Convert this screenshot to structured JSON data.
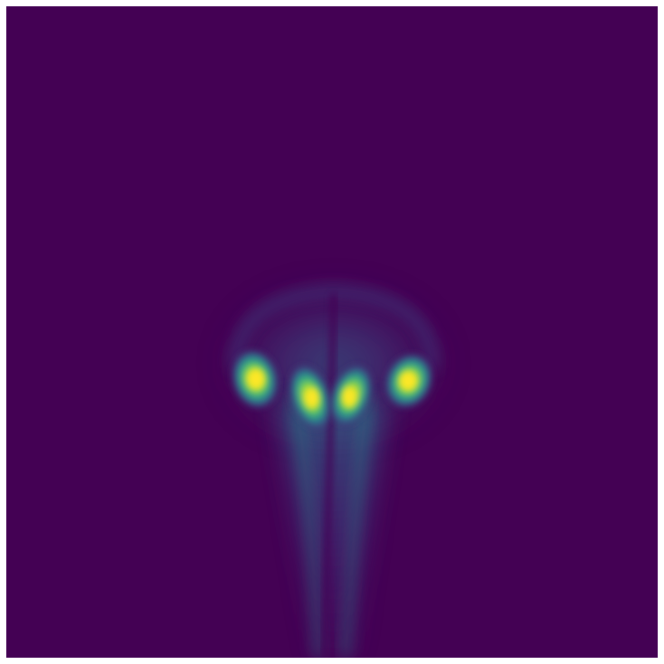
{
  "image": {
    "subject": "intensity-beam-profile",
    "colormap": "viridis",
    "colors": {
      "frame": "#ffffff",
      "background": "#440154",
      "low": "#3b528b",
      "mid": "#21918c",
      "high": "#5ec962",
      "peak": "#fde725"
    },
    "lobes": 4
  }
}
